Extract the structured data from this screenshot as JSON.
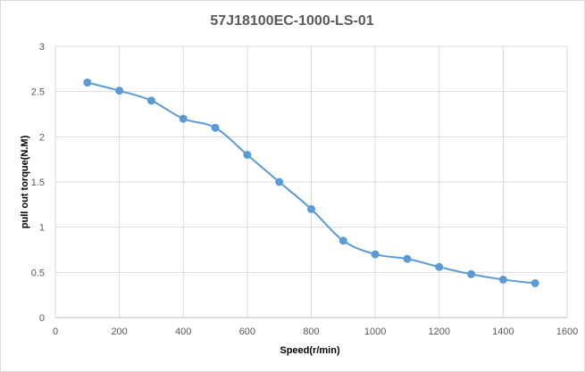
{
  "chart_data": {
    "type": "line",
    "title": "57J18100EC-1000-LS-01",
    "xlabel": "Speed(r/min)",
    "ylabel": "pull out torque(N.M)",
    "xlim": [
      0,
      1600
    ],
    "ylim": [
      0,
      3
    ],
    "x_ticks": [
      0,
      200,
      400,
      600,
      800,
      1000,
      1200,
      1400,
      1600
    ],
    "y_ticks": [
      0,
      0.5,
      1,
      1.5,
      2,
      2.5,
      3
    ],
    "x_tick_labels": [
      "0",
      "200",
      "400",
      "600",
      "800",
      "1000",
      "1200",
      "1400",
      "1600"
    ],
    "y_tick_labels": [
      "0",
      "0.5",
      "1",
      "1.5",
      "2",
      "2.5",
      "3"
    ],
    "grid": true,
    "smooth": true,
    "series": [
      {
        "color": "#5B9BD5",
        "x": [
          100,
          200,
          300,
          400,
          500,
          600,
          700,
          800,
          900,
          1000,
          1100,
          1200,
          1300,
          1400,
          1500
        ],
        "y": [
          2.6,
          2.51,
          2.4,
          2.2,
          2.1,
          1.8,
          1.5,
          1.2,
          0.85,
          0.7,
          0.65,
          0.56,
          0.48,
          0.42,
          0.38
        ]
      }
    ],
    "gridline_color": "#D9D9D9",
    "axis_color": "#BFBFBF"
  }
}
